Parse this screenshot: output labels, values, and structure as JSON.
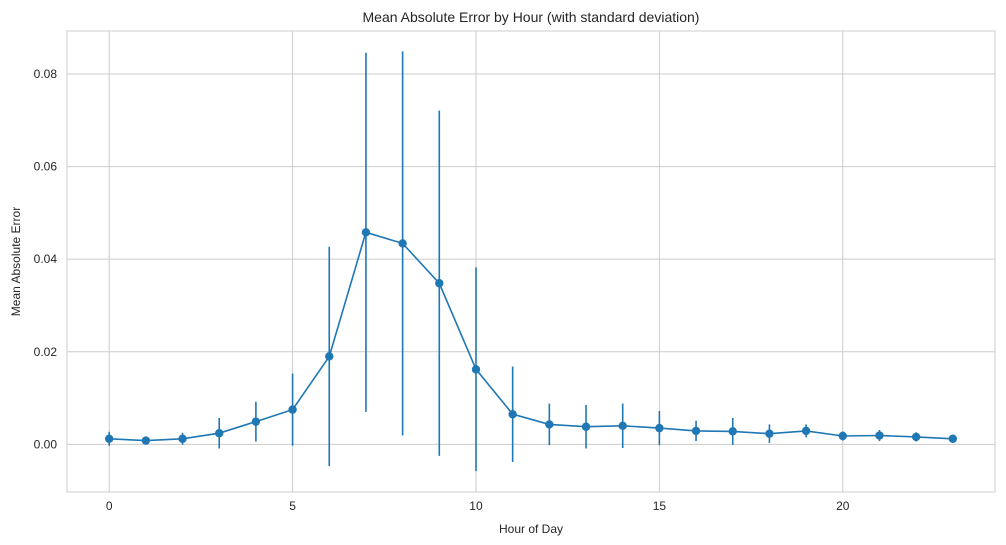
{
  "chart_data": {
    "type": "line",
    "title": "Mean Absolute Error by Hour (with standard deviation)",
    "xlabel": "Hour of Day",
    "ylabel": "Mean Absolute Error",
    "xlim": [
      -1.15,
      24.15
    ],
    "ylim": [
      -0.0103,
      0.0893
    ],
    "x_ticks": [
      0,
      5,
      10,
      15,
      20
    ],
    "x_tick_labels": [
      "0",
      "5",
      "10",
      "15",
      "20"
    ],
    "y_ticks": [
      0.0,
      0.02,
      0.04,
      0.06,
      0.08
    ],
    "y_tick_labels": [
      "0.00",
      "0.02",
      "0.04",
      "0.06",
      "0.08"
    ],
    "grid": true,
    "legend": "none",
    "series": [
      {
        "x": [
          0,
          1,
          2,
          3,
          4,
          5,
          6,
          7,
          8,
          9,
          10,
          11,
          12,
          13,
          14,
          15,
          16,
          17,
          18,
          19,
          20,
          21,
          22,
          23
        ],
        "values": [
          0.0012,
          0.0008,
          0.0012,
          0.0024,
          0.0049,
          0.0075,
          0.019,
          0.0458,
          0.0434,
          0.0348,
          0.0162,
          0.0065,
          0.0043,
          0.0038,
          0.004,
          0.0035,
          0.0029,
          0.0028,
          0.0023,
          0.0029,
          0.0018,
          0.0019,
          0.0016,
          0.0012
        ],
        "std": [
          0.0015,
          0.0006,
          0.0013,
          0.0033,
          0.0043,
          0.0078,
          0.0237,
          0.0388,
          0.0415,
          0.0373,
          0.022,
          0.0103,
          0.0045,
          0.0047,
          0.0048,
          0.0037,
          0.0022,
          0.0029,
          0.002,
          0.0014,
          0.001,
          0.0012,
          0.001,
          0.0009
        ]
      }
    ],
    "colors": {
      "line": "#1f77b4",
      "grid": "#cccccc",
      "axes_edge": "#cccccc",
      "text": "#262626"
    }
  }
}
